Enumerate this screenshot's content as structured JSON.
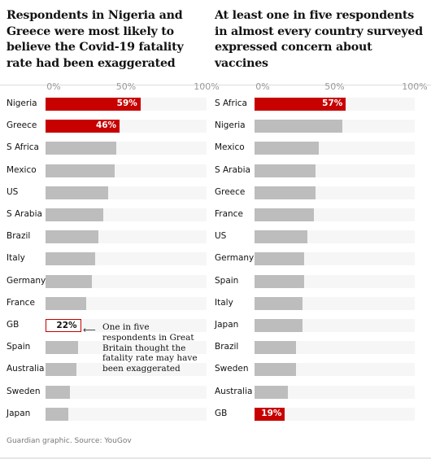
{
  "left": {
    "title": "Respondents in Nigeria and Greece were most likely to believe the Covid-19 fatality rate had been exaggerated",
    "ticks": [
      "0%",
      "50%",
      "100%"
    ],
    "annotation": "One in five respondents in Great Britain thought the fatality rate may have been exaggerated"
  },
  "right": {
    "title": "At least one in five respondents in almost every country surveyed expressed concern about vaccines",
    "ticks": [
      "0%",
      "50%",
      "100%"
    ]
  },
  "source": "Guardian graphic. Source: YouGov",
  "colors": {
    "highlight": "#c70000",
    "bar": "#bdbdbd",
    "track": "#f6f6f6"
  },
  "chart_data": [
    {
      "type": "bar",
      "orientation": "horizontal",
      "title": "Respondents in Nigeria and Greece were most likely to believe the Covid-19 fatality rate had been exaggerated",
      "xlim": [
        0,
        100
      ],
      "categories": [
        "Nigeria",
        "Greece",
        "S Africa",
        "Mexico",
        "US",
        "S Arabia",
        "Brazil",
        "Italy",
        "Germany",
        "France",
        "GB",
        "Spain",
        "Australia",
        "Sweden",
        "Japan"
      ],
      "values": [
        59,
        46,
        44,
        43,
        39,
        36,
        33,
        31,
        29,
        25,
        22,
        20,
        19,
        15,
        14
      ],
      "labels": [
        "59%",
        "46%",
        "",
        "",
        "",
        "",
        "",
        "",
        "",
        "",
        "22%",
        "",
        "",
        "",
        ""
      ],
      "highlight": [
        "Nigeria",
        "Greece"
      ],
      "outlined": [
        "GB"
      ]
    },
    {
      "type": "bar",
      "orientation": "horizontal",
      "title": "At least one in five respondents in almost every country surveyed expressed concern about vaccines",
      "xlim": [
        0,
        100
      ],
      "categories": [
        "S Africa",
        "Nigeria",
        "Mexico",
        "S Arabia",
        "Greece",
        "France",
        "US",
        "Germany",
        "Spain",
        "Italy",
        "Japan",
        "Brazil",
        "Sweden",
        "Australia",
        "GB"
      ],
      "values": [
        57,
        55,
        40,
        38,
        38,
        37,
        33,
        31,
        31,
        30,
        30,
        26,
        26,
        21,
        19
      ],
      "labels": [
        "57%",
        "",
        "",
        "",
        "",
        "",
        "",
        "",
        "",
        "",
        "",
        "",
        "",
        "",
        "19%"
      ],
      "highlight": [
        "S Africa",
        "GB"
      ],
      "outlined": []
    }
  ]
}
